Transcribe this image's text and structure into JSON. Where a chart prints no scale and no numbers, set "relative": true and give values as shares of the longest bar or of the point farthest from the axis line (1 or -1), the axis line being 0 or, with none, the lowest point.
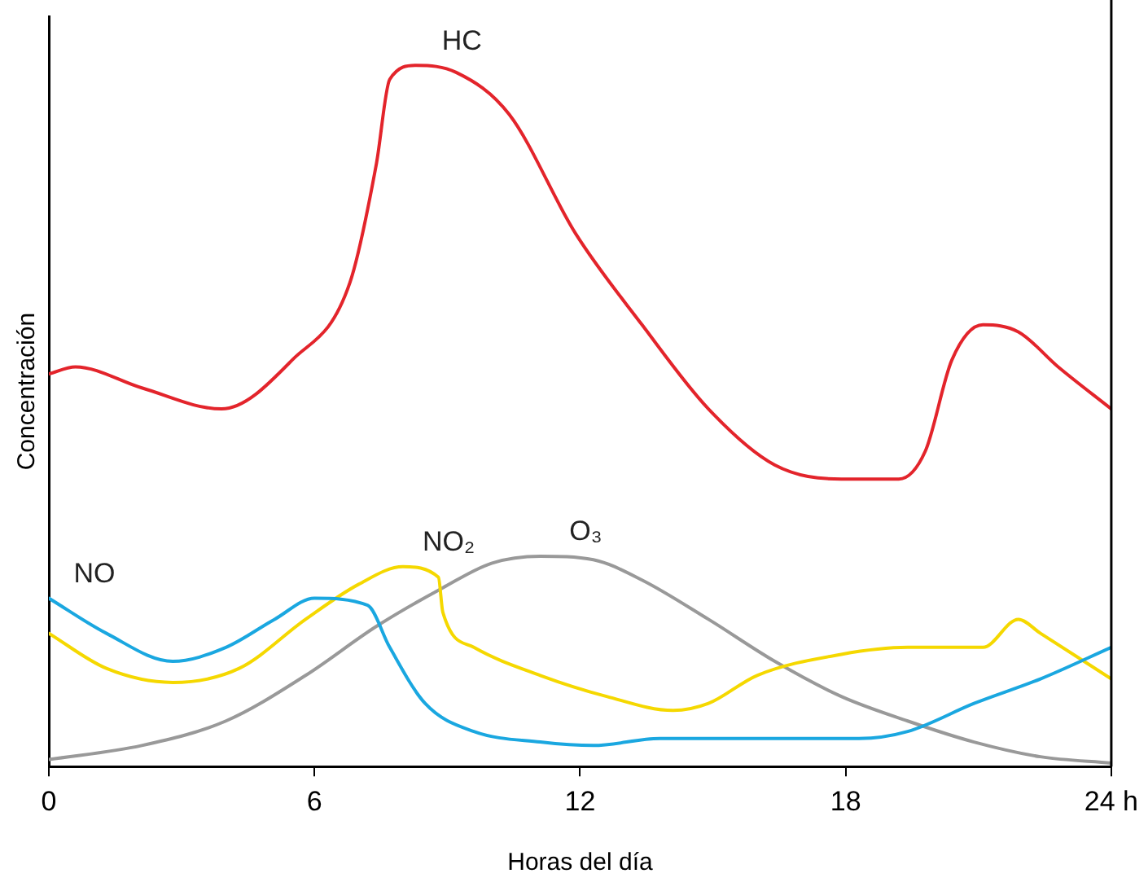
{
  "chart_data": {
    "type": "line",
    "relative": true,
    "xlabel": "Horas del día",
    "ylabel": "Concentración",
    "xlim": [
      0,
      24
    ],
    "xticks": [
      0,
      6,
      12,
      18,
      {
        "value": 24,
        "label": "24 h"
      }
    ],
    "grid": false,
    "legend": false,
    "marker": "none",
    "line_style": "solid",
    "series": [
      {
        "name": "HC",
        "color": "#e3242b",
        "x": [
          0,
          0.6,
          2.1,
          3.9,
          5.5,
          6.8,
          7.4,
          7.7,
          8.3,
          9.2,
          10.4,
          11.9,
          13.4,
          14.9,
          16.4,
          17.9,
          19.2,
          19.8,
          20.4,
          21.1,
          21.9,
          22.8,
          24
        ],
        "values": [
          0.56,
          0.57,
          0.54,
          0.51,
          0.58,
          0.69,
          0.86,
          0.98,
          1,
          0.99,
          0.93,
          0.76,
          0.63,
          0.51,
          0.43,
          0.41,
          0.41,
          0.45,
          0.58,
          0.63,
          0.62,
          0.57,
          0.51
        ]
      },
      {
        "name": "NO",
        "color": "#1aa7e0",
        "x": [
          0,
          1.3,
          2.8,
          4,
          5.1,
          6,
          7.2,
          7.7,
          8.5,
          9.6,
          11.1,
          12.3,
          13.8,
          15.3,
          18.3,
          19.4,
          20.9,
          22.4,
          24
        ],
        "values": [
          0.24,
          0.19,
          0.15,
          0.17,
          0.21,
          0.24,
          0.23,
          0.17,
          0.09,
          0.05,
          0.035,
          0.03,
          0.04,
          0.04,
          0.04,
          0.05,
          0.09,
          0.125,
          0.17
        ]
      },
      {
        "name": "NO₂",
        "color": "#f5d800",
        "x": [
          0,
          1.3,
          2.8,
          4.3,
          5.8,
          7,
          8,
          8.8,
          8.9,
          9.6,
          11.1,
          12.6,
          14.1,
          14.9,
          16,
          17.9,
          19.4,
          21.1,
          21.9,
          22.4,
          24
        ],
        "values": [
          0.19,
          0.14,
          0.12,
          0.14,
          0.21,
          0.26,
          0.285,
          0.27,
          0.22,
          0.17,
          0.13,
          0.1,
          0.08,
          0.09,
          0.13,
          0.16,
          0.17,
          0.17,
          0.21,
          0.19,
          0.125
        ]
      },
      {
        "name": "O₃",
        "color": "#999999",
        "x": [
          0,
          2.1,
          4,
          5.8,
          7.4,
          8.9,
          10,
          11.1,
          12.3,
          13.4,
          14.9,
          16.4,
          17.9,
          19.4,
          20.9,
          22.4,
          24
        ],
        "values": [
          0.01,
          0.03,
          0.065,
          0.13,
          0.2,
          0.255,
          0.29,
          0.3,
          0.295,
          0.266,
          0.21,
          0.15,
          0.1,
          0.065,
          0.035,
          0.014,
          0.005
        ]
      }
    ]
  }
}
